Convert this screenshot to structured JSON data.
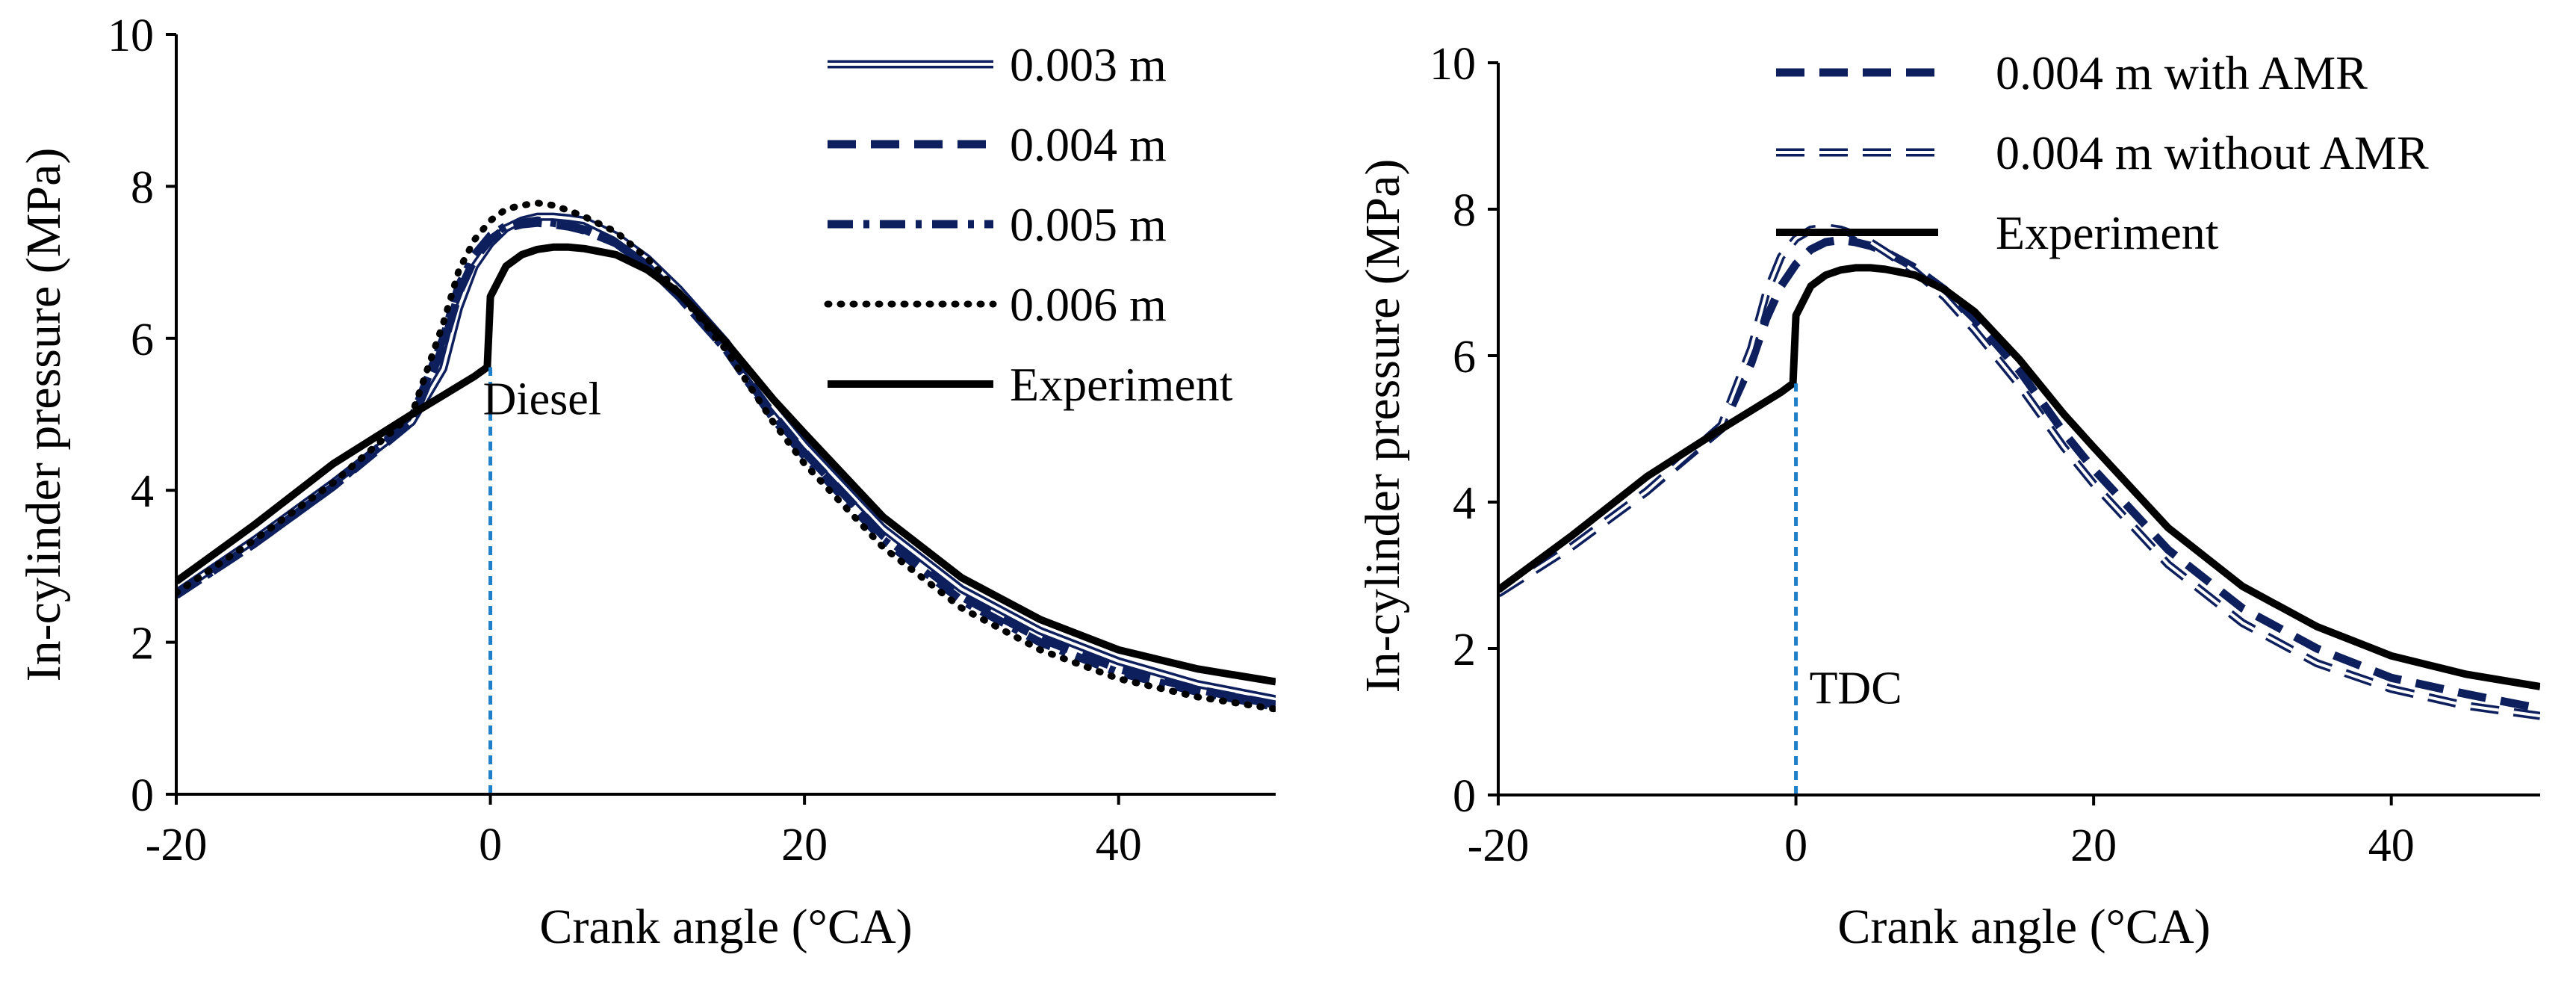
{
  "colors": {
    "navy": "#0d1f5c",
    "black": "#000000",
    "marker_line": "#1f7fc8",
    "axis": "#000000"
  },
  "chart_data": [
    {
      "type": "line",
      "panel": "left",
      "xlabel": "Crank angle  (°CA)",
      "ylabel": "In-cylinder pressure  (MPa)",
      "xlim": [
        -20,
        50
      ],
      "ylim": [
        0,
        10
      ],
      "xticks": [
        -20,
        0,
        20,
        40
      ],
      "yticks": [
        0,
        2,
        4,
        6,
        8,
        10
      ],
      "xtick_labels": [
        "-20",
        "0",
        "20",
        "40"
      ],
      "ytick_labels": [
        "0",
        "2",
        "4",
        "6",
        "8",
        "10"
      ],
      "legend_position": "top-right",
      "annotation": {
        "text": "Diesel",
        "x": 0,
        "y": 5.6
      },
      "vline_x": 0,
      "series": [
        {
          "name": "0.003 m",
          "style": "double",
          "color": "#0d1f5c",
          "x": [
            -20,
            -15,
            -10,
            -5,
            -3,
            -2,
            -1,
            0,
            1,
            2,
            3,
            4,
            5,
            6,
            8,
            10,
            12,
            15,
            18,
            20,
            25,
            30,
            35,
            40,
            45,
            50
          ],
          "y": [
            2.65,
            3.35,
            4.1,
            4.9,
            5.6,
            6.4,
            6.95,
            7.25,
            7.45,
            7.55,
            7.6,
            7.6,
            7.58,
            7.55,
            7.35,
            7.05,
            6.65,
            5.95,
            5.1,
            4.6,
            3.5,
            2.7,
            2.15,
            1.75,
            1.45,
            1.25
          ]
        },
        {
          "name": "0.004 m",
          "style": "dashed",
          "color": "#0d1f5c",
          "x": [
            -20,
            -15,
            -10,
            -5,
            -3,
            -2,
            -1,
            0,
            1,
            2,
            3,
            4,
            5,
            6,
            8,
            10,
            12,
            15,
            18,
            20,
            25,
            30,
            35,
            40,
            45,
            50
          ],
          "y": [
            2.62,
            3.3,
            4.05,
            4.9,
            5.9,
            6.6,
            7.05,
            7.3,
            7.45,
            7.5,
            7.52,
            7.5,
            7.47,
            7.42,
            7.25,
            6.95,
            6.55,
            5.85,
            5.0,
            4.5,
            3.4,
            2.6,
            2.05,
            1.65,
            1.38,
            1.18
          ]
        },
        {
          "name": "0.005 m",
          "style": "dashdot",
          "color": "#0d1f5c",
          "x": [
            -20,
            -15,
            -10,
            -5,
            -3,
            -2,
            -1,
            0,
            1,
            2,
            3,
            4,
            5,
            6,
            8,
            10,
            12,
            15,
            18,
            20,
            25,
            30,
            35,
            40,
            45,
            50
          ],
          "y": [
            2.62,
            3.3,
            4.05,
            4.95,
            6.0,
            6.7,
            7.1,
            7.35,
            7.48,
            7.52,
            7.55,
            7.52,
            7.48,
            7.43,
            7.25,
            6.95,
            6.55,
            5.85,
            4.95,
            4.45,
            3.35,
            2.55,
            2.0,
            1.6,
            1.35,
            1.15
          ]
        },
        {
          "name": "0.006 m",
          "style": "dotted",
          "color": "#000000",
          "x": [
            -20,
            -15,
            -10,
            -5,
            -3,
            -2,
            -1,
            0,
            1,
            2,
            3,
            4,
            5,
            6,
            8,
            10,
            12,
            15,
            18,
            20,
            25,
            30,
            35,
            40,
            45,
            50
          ],
          "y": [
            2.65,
            3.35,
            4.1,
            5.0,
            6.2,
            6.9,
            7.3,
            7.55,
            7.7,
            7.75,
            7.78,
            7.75,
            7.68,
            7.6,
            7.4,
            7.05,
            6.6,
            5.85,
            4.9,
            4.35,
            3.25,
            2.45,
            1.9,
            1.52,
            1.28,
            1.12
          ]
        },
        {
          "name": "Experiment",
          "style": "solid",
          "color": "#000000",
          "x": [
            -20,
            -15,
            -10,
            -5,
            -3,
            -1,
            -0.2,
            0,
            1,
            2,
            3,
            4,
            5,
            6,
            8,
            10,
            12,
            15,
            18,
            20,
            25,
            30,
            35,
            40,
            45,
            50
          ],
          "y": [
            2.8,
            3.55,
            4.35,
            5.0,
            5.25,
            5.5,
            5.62,
            6.55,
            6.95,
            7.1,
            7.17,
            7.2,
            7.2,
            7.18,
            7.1,
            6.9,
            6.6,
            5.95,
            5.2,
            4.75,
            3.65,
            2.85,
            2.3,
            1.9,
            1.65,
            1.48
          ]
        }
      ]
    },
    {
      "type": "line",
      "panel": "right",
      "xlabel": "Crank angle  (°CA)",
      "ylabel": "In-cylinder pressure  (MPa)",
      "xlim": [
        -20,
        50
      ],
      "ylim": [
        0,
        10
      ],
      "xticks": [
        -20,
        0,
        20,
        40
      ],
      "yticks": [
        0,
        2,
        4,
        6,
        8,
        10
      ],
      "xtick_labels": [
        "-20",
        "0",
        "20",
        "40"
      ],
      "ytick_labels": [
        "0",
        "2",
        "4",
        "6",
        "8",
        "10"
      ],
      "legend_position": "top-right",
      "annotation": {
        "text": "TDC",
        "x": 0,
        "y": 1.2
      },
      "vline_x": 0,
      "series": [
        {
          "name": "0.004 m with AMR",
          "style": "dashed",
          "color": "#0d1f5c",
          "x": [
            -20,
            -15,
            -10,
            -5,
            -3,
            -2,
            -1,
            0,
            1,
            2,
            3,
            4,
            5,
            6,
            8,
            10,
            12,
            15,
            18,
            20,
            25,
            30,
            35,
            40,
            45,
            50
          ],
          "y": [
            2.75,
            3.4,
            4.15,
            5.0,
            5.9,
            6.5,
            6.95,
            7.25,
            7.45,
            7.55,
            7.58,
            7.55,
            7.5,
            7.42,
            7.2,
            6.9,
            6.5,
            5.8,
            4.95,
            4.45,
            3.35,
            2.55,
            2.0,
            1.6,
            1.38,
            1.18
          ]
        },
        {
          "name": "0.004 m without AMR",
          "style": "double",
          "color": "#0d1f5c",
          "x": [
            -20,
            -15,
            -10,
            -5,
            -3,
            -2,
            -1,
            0,
            1,
            2,
            3,
            4,
            5,
            6,
            8,
            10,
            12,
            15,
            18,
            20,
            25,
            30,
            35,
            40,
            45,
            50
          ],
          "y": [
            2.75,
            3.4,
            4.15,
            5.05,
            6.1,
            6.85,
            7.35,
            7.6,
            7.72,
            7.75,
            7.72,
            7.65,
            7.55,
            7.42,
            7.15,
            6.8,
            6.35,
            5.6,
            4.75,
            4.25,
            3.15,
            2.35,
            1.8,
            1.45,
            1.22,
            1.08
          ]
        },
        {
          "name": "Experiment",
          "style": "solid",
          "color": "#000000",
          "x": [
            -20,
            -15,
            -10,
            -5,
            -3,
            -1,
            -0.2,
            0,
            1,
            2,
            3,
            4,
            5,
            6,
            8,
            10,
            12,
            15,
            18,
            20,
            25,
            30,
            35,
            40,
            45,
            50
          ],
          "y": [
            2.8,
            3.55,
            4.35,
            5.0,
            5.25,
            5.5,
            5.62,
            6.55,
            6.95,
            7.1,
            7.17,
            7.2,
            7.2,
            7.18,
            7.1,
            6.9,
            6.6,
            5.95,
            5.2,
            4.75,
            3.65,
            2.85,
            2.3,
            1.9,
            1.65,
            1.48
          ]
        }
      ]
    }
  ]
}
